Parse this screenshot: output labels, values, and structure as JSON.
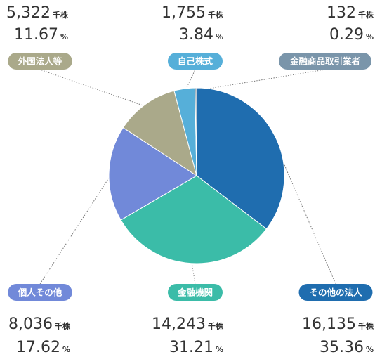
{
  "chart_data": {
    "type": "pie",
    "categories": [
      "その他の法人",
      "金融機関",
      "個人その他",
      "外国法人等",
      "自己株式",
      "金融商品取引業者"
    ],
    "values": [
      35.36,
      31.21,
      17.62,
      11.67,
      3.84,
      0.29
    ],
    "colors": [
      "#1f6daf",
      "#3bbca8",
      "#7189d9",
      "#aaa98a",
      "#56afd9",
      "#7a95aa"
    ],
    "counts": [
      16135,
      14243,
      8036,
      5322,
      1755,
      132
    ],
    "count_labels": [
      "16,135",
      "14,243",
      "8,036",
      "5,322",
      "1,755",
      "132"
    ],
    "count_unit": "千株",
    "percent_unit": "%"
  }
}
